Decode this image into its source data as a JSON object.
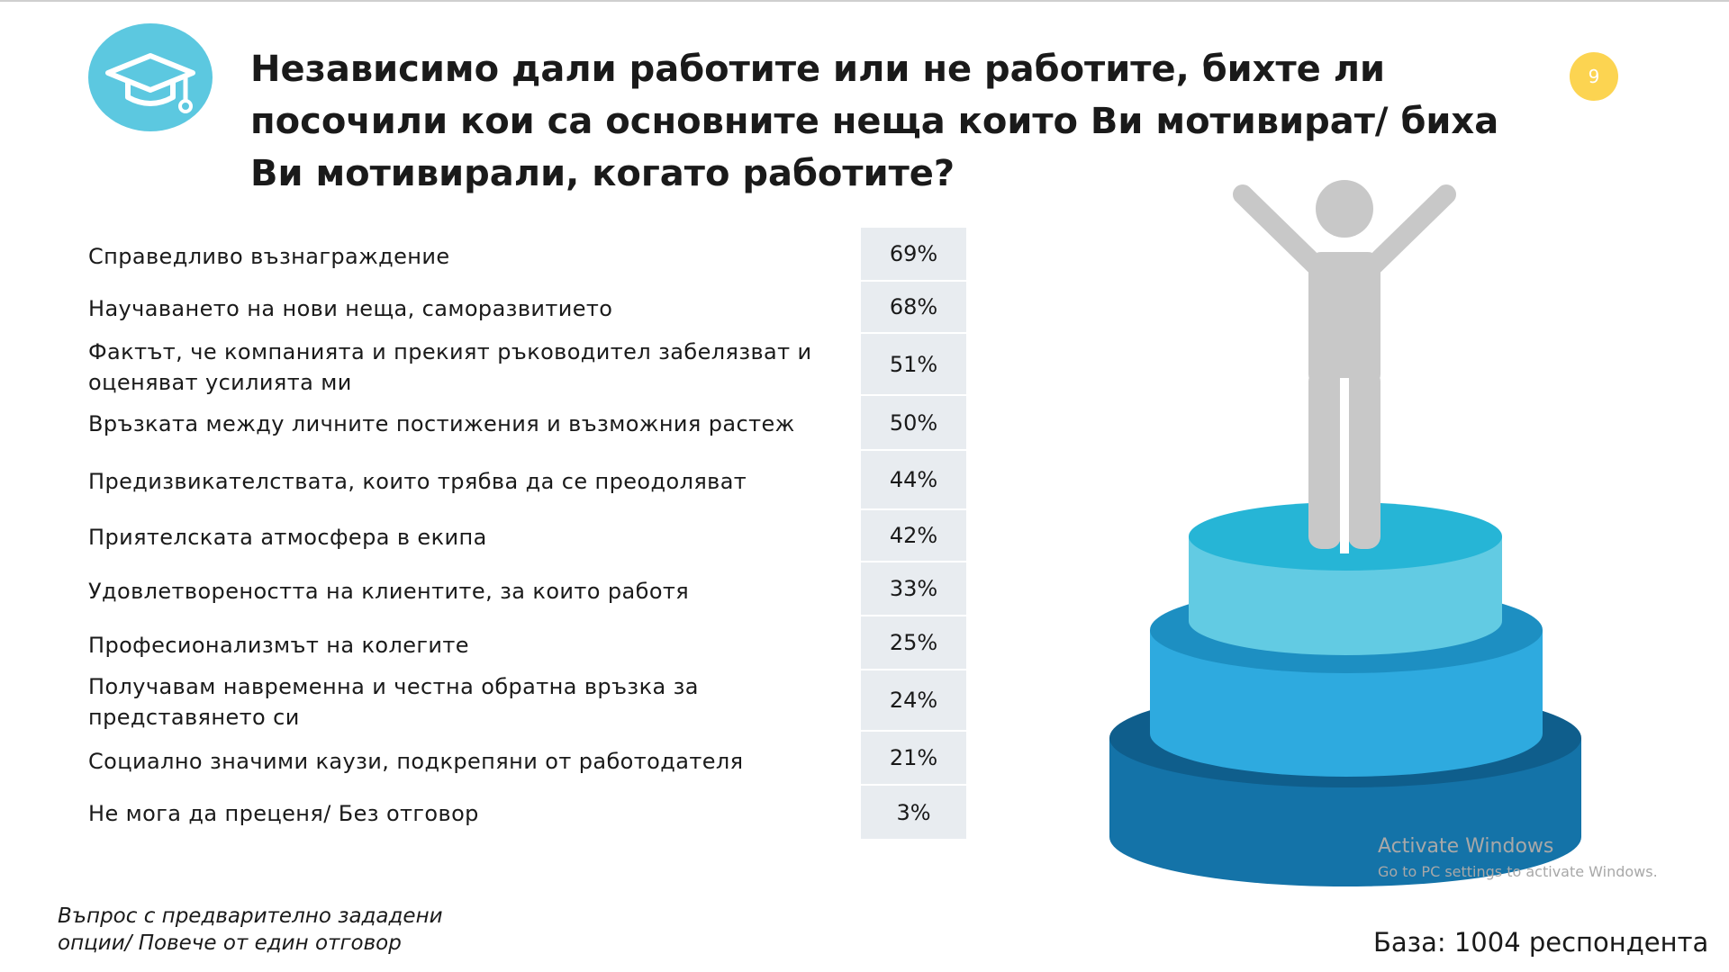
{
  "header": {
    "title": "Независимо дали работите или не работите, бихте ли посочили кои са основните неща които Ви мотивират/ биха Ви мотивирали, когато работите?",
    "page_number": "9",
    "badge_icon": "graduation-cap-icon"
  },
  "items": [
    {
      "label": "Справедливо възнаграждение",
      "value": "69%"
    },
    {
      "label": "Научаването на нови неща, саморазвитието",
      "value": "68%"
    },
    {
      "label": "Фактът, че компанията и прекият ръководител забелязват и оценяват усилията ми",
      "value": "51%"
    },
    {
      "label": "Връзката между личните постижения и възможния растеж",
      "value": "50%"
    },
    {
      "label": "Предизвикателствата, които трябва да се преодоляват",
      "value": "44%"
    },
    {
      "label": "Приятелската атмосфера в екипа",
      "value": "42%"
    },
    {
      "label": "Удовлетвореността на клиентите, за които работя",
      "value": "33%"
    },
    {
      "label": "Професионализмът на колегите",
      "value": "25%"
    },
    {
      "label": "Получавам навременна и честна обратна връзка за представянето си",
      "value": "24%"
    },
    {
      "label": "Социално значими каузи, подкрепяни от работодателя",
      "value": "21%"
    },
    {
      "label": "Не мога да преценя/ Без отговор",
      "value": "3%"
    }
  ],
  "footer": {
    "note": "Въпрос с предварително зададени опции/ Повече от един отговор",
    "base": "База: 1004 респондента"
  },
  "watermark": {
    "line1": "Activate Windows",
    "line2": "Go to PC settings to activate Windows."
  },
  "colors": {
    "badge": "#5cc8e0",
    "page_badge": "#fcd451",
    "value_column": "#e8ecf0",
    "figure": "#c8c8c8",
    "tier_top": "#62cbe3",
    "tier_mid": "#2eaadf",
    "tier_bottom": "#1473a8"
  }
}
